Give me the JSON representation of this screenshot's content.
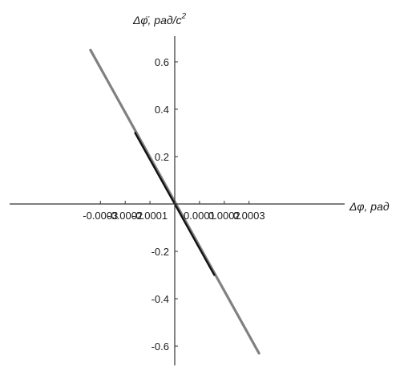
{
  "chart_data": {
    "type": "line",
    "xlabel": "Δφ, рад",
    "ylabel_html": "Δφ̈, рад/с",
    "ylabel_superscript": "2",
    "x_ticks": [
      {
        "value": -0.0003,
        "label": "-0.0003"
      },
      {
        "value": -0.0002,
        "label": "-0.0002"
      },
      {
        "value": -0.0001,
        "label": "-0.0001"
      },
      {
        "value": 0.0001,
        "label": "0.0001"
      },
      {
        "value": 0.0002,
        "label": "0.0002"
      },
      {
        "value": 0.0003,
        "label": "0.0003"
      }
    ],
    "y_ticks": [
      {
        "value": 0.6,
        "label": "0.6"
      },
      {
        "value": 0.4,
        "label": "0.4"
      },
      {
        "value": 0.2,
        "label": "0.2"
      },
      {
        "value": -0.2,
        "label": "-0.2"
      },
      {
        "value": -0.4,
        "label": "-0.4"
      },
      {
        "value": -0.6,
        "label": "-0.6"
      }
    ],
    "xlim": [
      -0.00036,
      0.00036
    ],
    "ylim": [
      -0.7,
      0.7
    ],
    "grid": false,
    "series": [
      {
        "color": "#808080",
        "x": [
          -0.00034,
          0.00034
        ],
        "y": [
          0.65,
          -0.63
        ]
      },
      {
        "color": "#111111",
        "x": [
          -0.00016,
          0.00016
        ],
        "y": [
          0.3,
          -0.3
        ]
      }
    ]
  }
}
